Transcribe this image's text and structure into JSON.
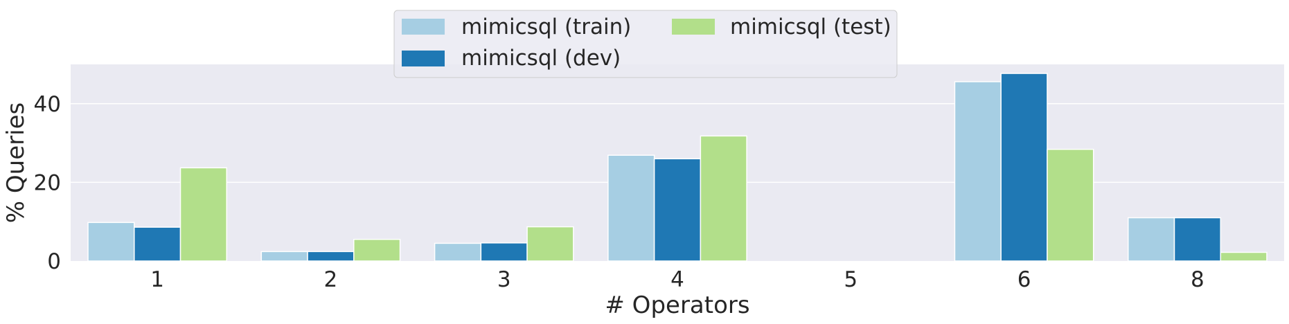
{
  "chart_data": {
    "type": "bar",
    "title": "",
    "xlabel": "# Operators",
    "ylabel": "% Queries",
    "categories": [
      "1",
      "2",
      "3",
      "4",
      "5",
      "6",
      "8"
    ],
    "series": [
      {
        "name": "mimicsql (train)",
        "color": "#a6cee3",
        "values": [
          9.8,
          2.4,
          4.5,
          26.9,
          0,
          45.6,
          11.0
        ]
      },
      {
        "name": "mimicsql (dev)",
        "color": "#1f78b4",
        "values": [
          8.6,
          2.4,
          4.6,
          26.0,
          0,
          47.7,
          11.0
        ]
      },
      {
        "name": "mimicsql (test)",
        "color": "#b2df8a",
        "values": [
          23.7,
          5.5,
          8.7,
          31.8,
          0,
          28.4,
          2.2
        ]
      }
    ],
    "yticks": [
      0,
      20,
      40
    ],
    "ylim": [
      0,
      50
    ],
    "grid": true,
    "legend_position": "top-center"
  }
}
